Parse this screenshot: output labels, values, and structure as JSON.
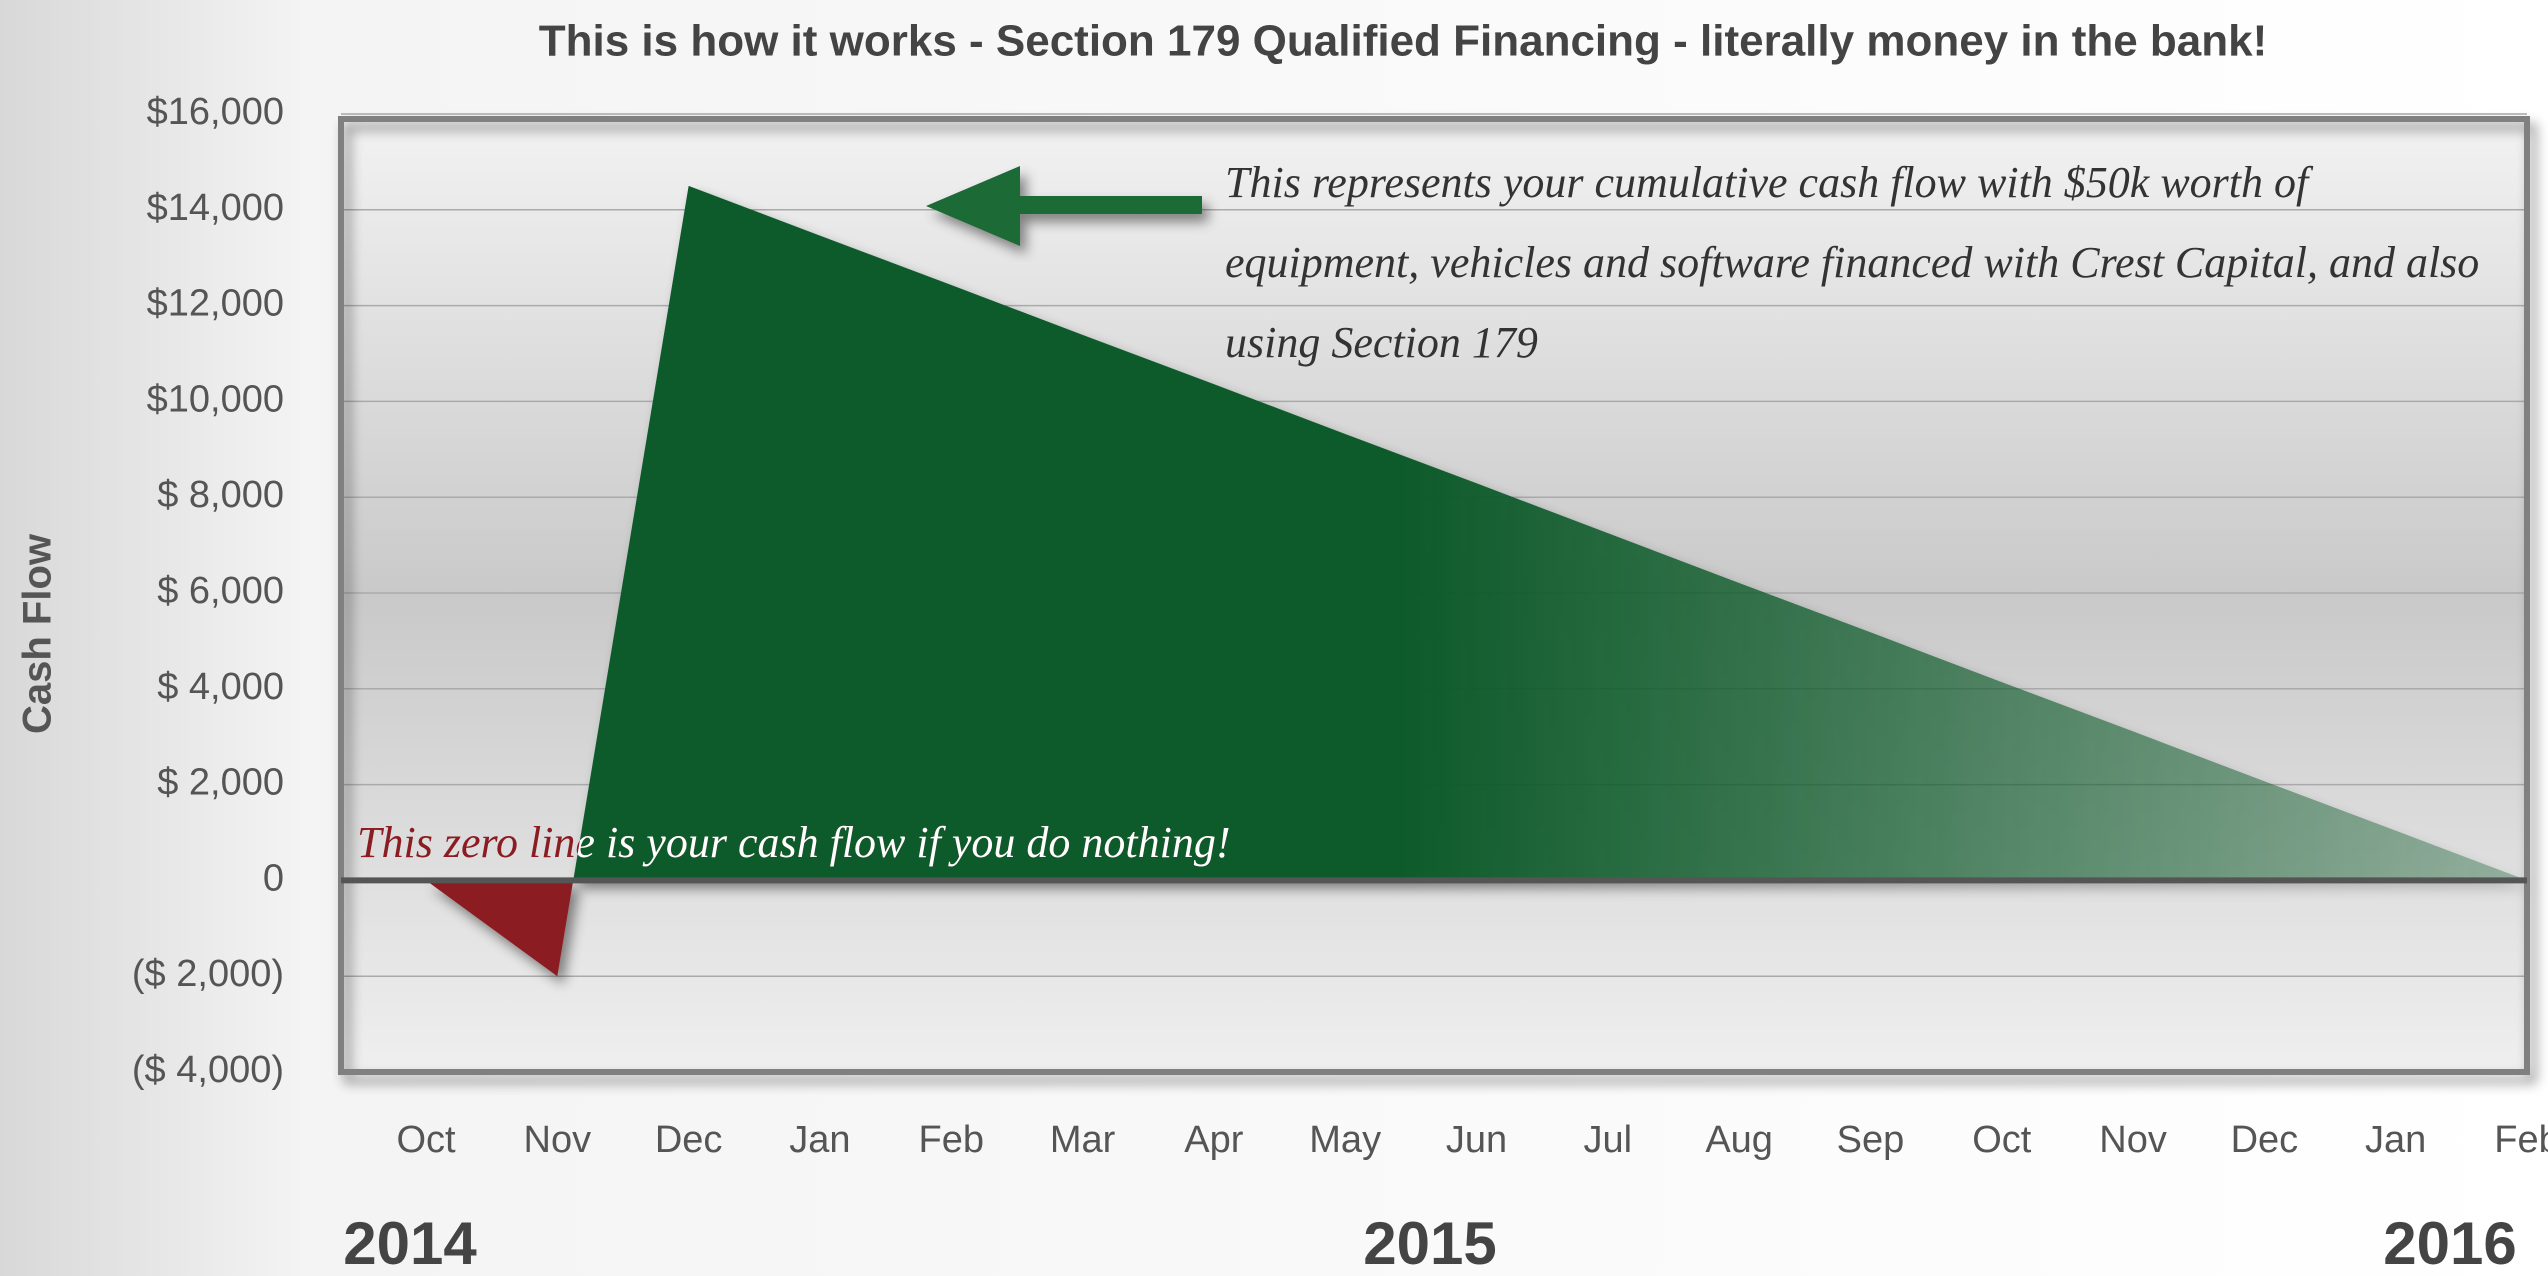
{
  "chart_data": {
    "type": "area",
    "title": "This is how it works - Section 179 Qualified Financing - literally money in the bank!",
    "y_label": "Cash Flow",
    "categories": [
      "Oct",
      "Nov",
      "Dec",
      "Jan",
      "Feb",
      "Mar",
      "Apr",
      "May",
      "Jun",
      "Jul",
      "Aug",
      "Sep",
      "Oct",
      "Nov",
      "Dec",
      "Jan",
      "Feb"
    ],
    "year_labels": [
      "2014",
      "2015",
      "2016"
    ],
    "series": [
      {
        "name": "Cumulative cash flow",
        "color": "#0f5a2c",
        "negative_color": "#8a1c22",
        "values": [
          0,
          -2000,
          14500,
          13460,
          12430,
          11390,
          10360,
          9320,
          8290,
          7250,
          6210,
          5180,
          4140,
          3110,
          2070,
          1040,
          0
        ]
      }
    ],
    "ylim": [
      -4000,
      16000
    ],
    "yticks": [
      {
        "value": -4000,
        "label": "($  4,000)"
      },
      {
        "value": -2000,
        "label": "($  2,000)"
      },
      0,
      {
        "value": 2000,
        "label": "$  2,000"
      },
      {
        "value": 4000,
        "label": "$  4,000"
      },
      {
        "value": 6000,
        "label": "$  6,000"
      },
      {
        "value": 8000,
        "label": "$  8,000"
      },
      {
        "value": 10000,
        "label": "$10,000"
      },
      {
        "value": 12000,
        "label": "$12,000"
      },
      {
        "value": 14000,
        "label": "$14,000"
      },
      {
        "value": 16000,
        "label": "$16,000"
      }
    ],
    "grid": true,
    "annotation_lines": [
      "This represents your cumulative cash flow with $50k worth of",
      "equipment, vehicles and software financed with Crest Capital, and also",
      "using Section 179"
    ],
    "zero_annotation": "This zero line is your cash flow if you do nothing!"
  }
}
